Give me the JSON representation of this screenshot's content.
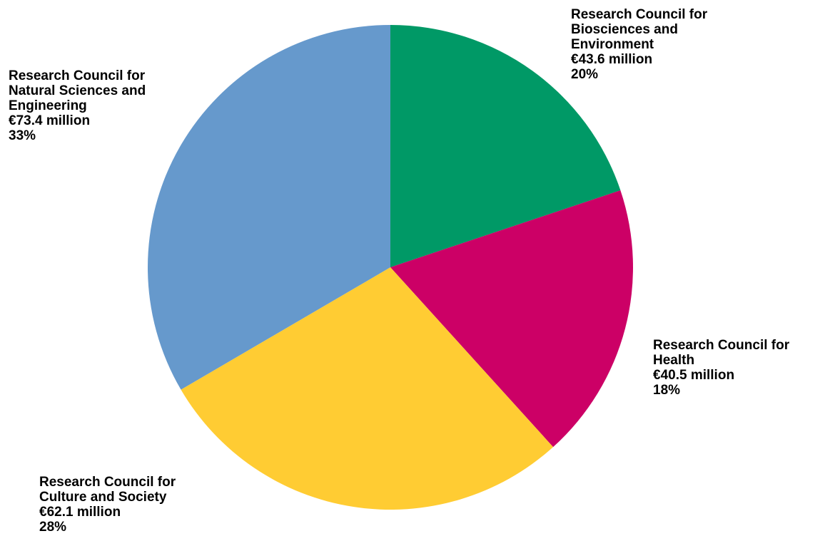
{
  "chart_data": {
    "type": "pie",
    "slices": [
      {
        "key": "biosciences",
        "label_lines": [
          "Research Council for",
          "Biosciences and",
          "Environment"
        ],
        "amount": "€43.6 million",
        "percent_label": "20%",
        "value": 43.6,
        "color": "#009966"
      },
      {
        "key": "health",
        "label_lines": [
          "Research Council for",
          "Health"
        ],
        "amount": "€40.5 million",
        "percent_label": "18%",
        "value": 40.5,
        "color": "#cc0066"
      },
      {
        "key": "culture",
        "label_lines": [
          "Research Council for",
          "Culture and Society"
        ],
        "amount": "€62.1 million",
        "percent_label": "28%",
        "value": 62.1,
        "color": "#ffcc33"
      },
      {
        "key": "natural",
        "label_lines": [
          "Research Council for",
          "Natural Sciences and",
          "Engineering"
        ],
        "amount": "€73.4 million",
        "percent_label": "33%",
        "value": 73.4,
        "color": "#6699cc"
      }
    ],
    "start_position": "top",
    "direction": "clockwise"
  }
}
